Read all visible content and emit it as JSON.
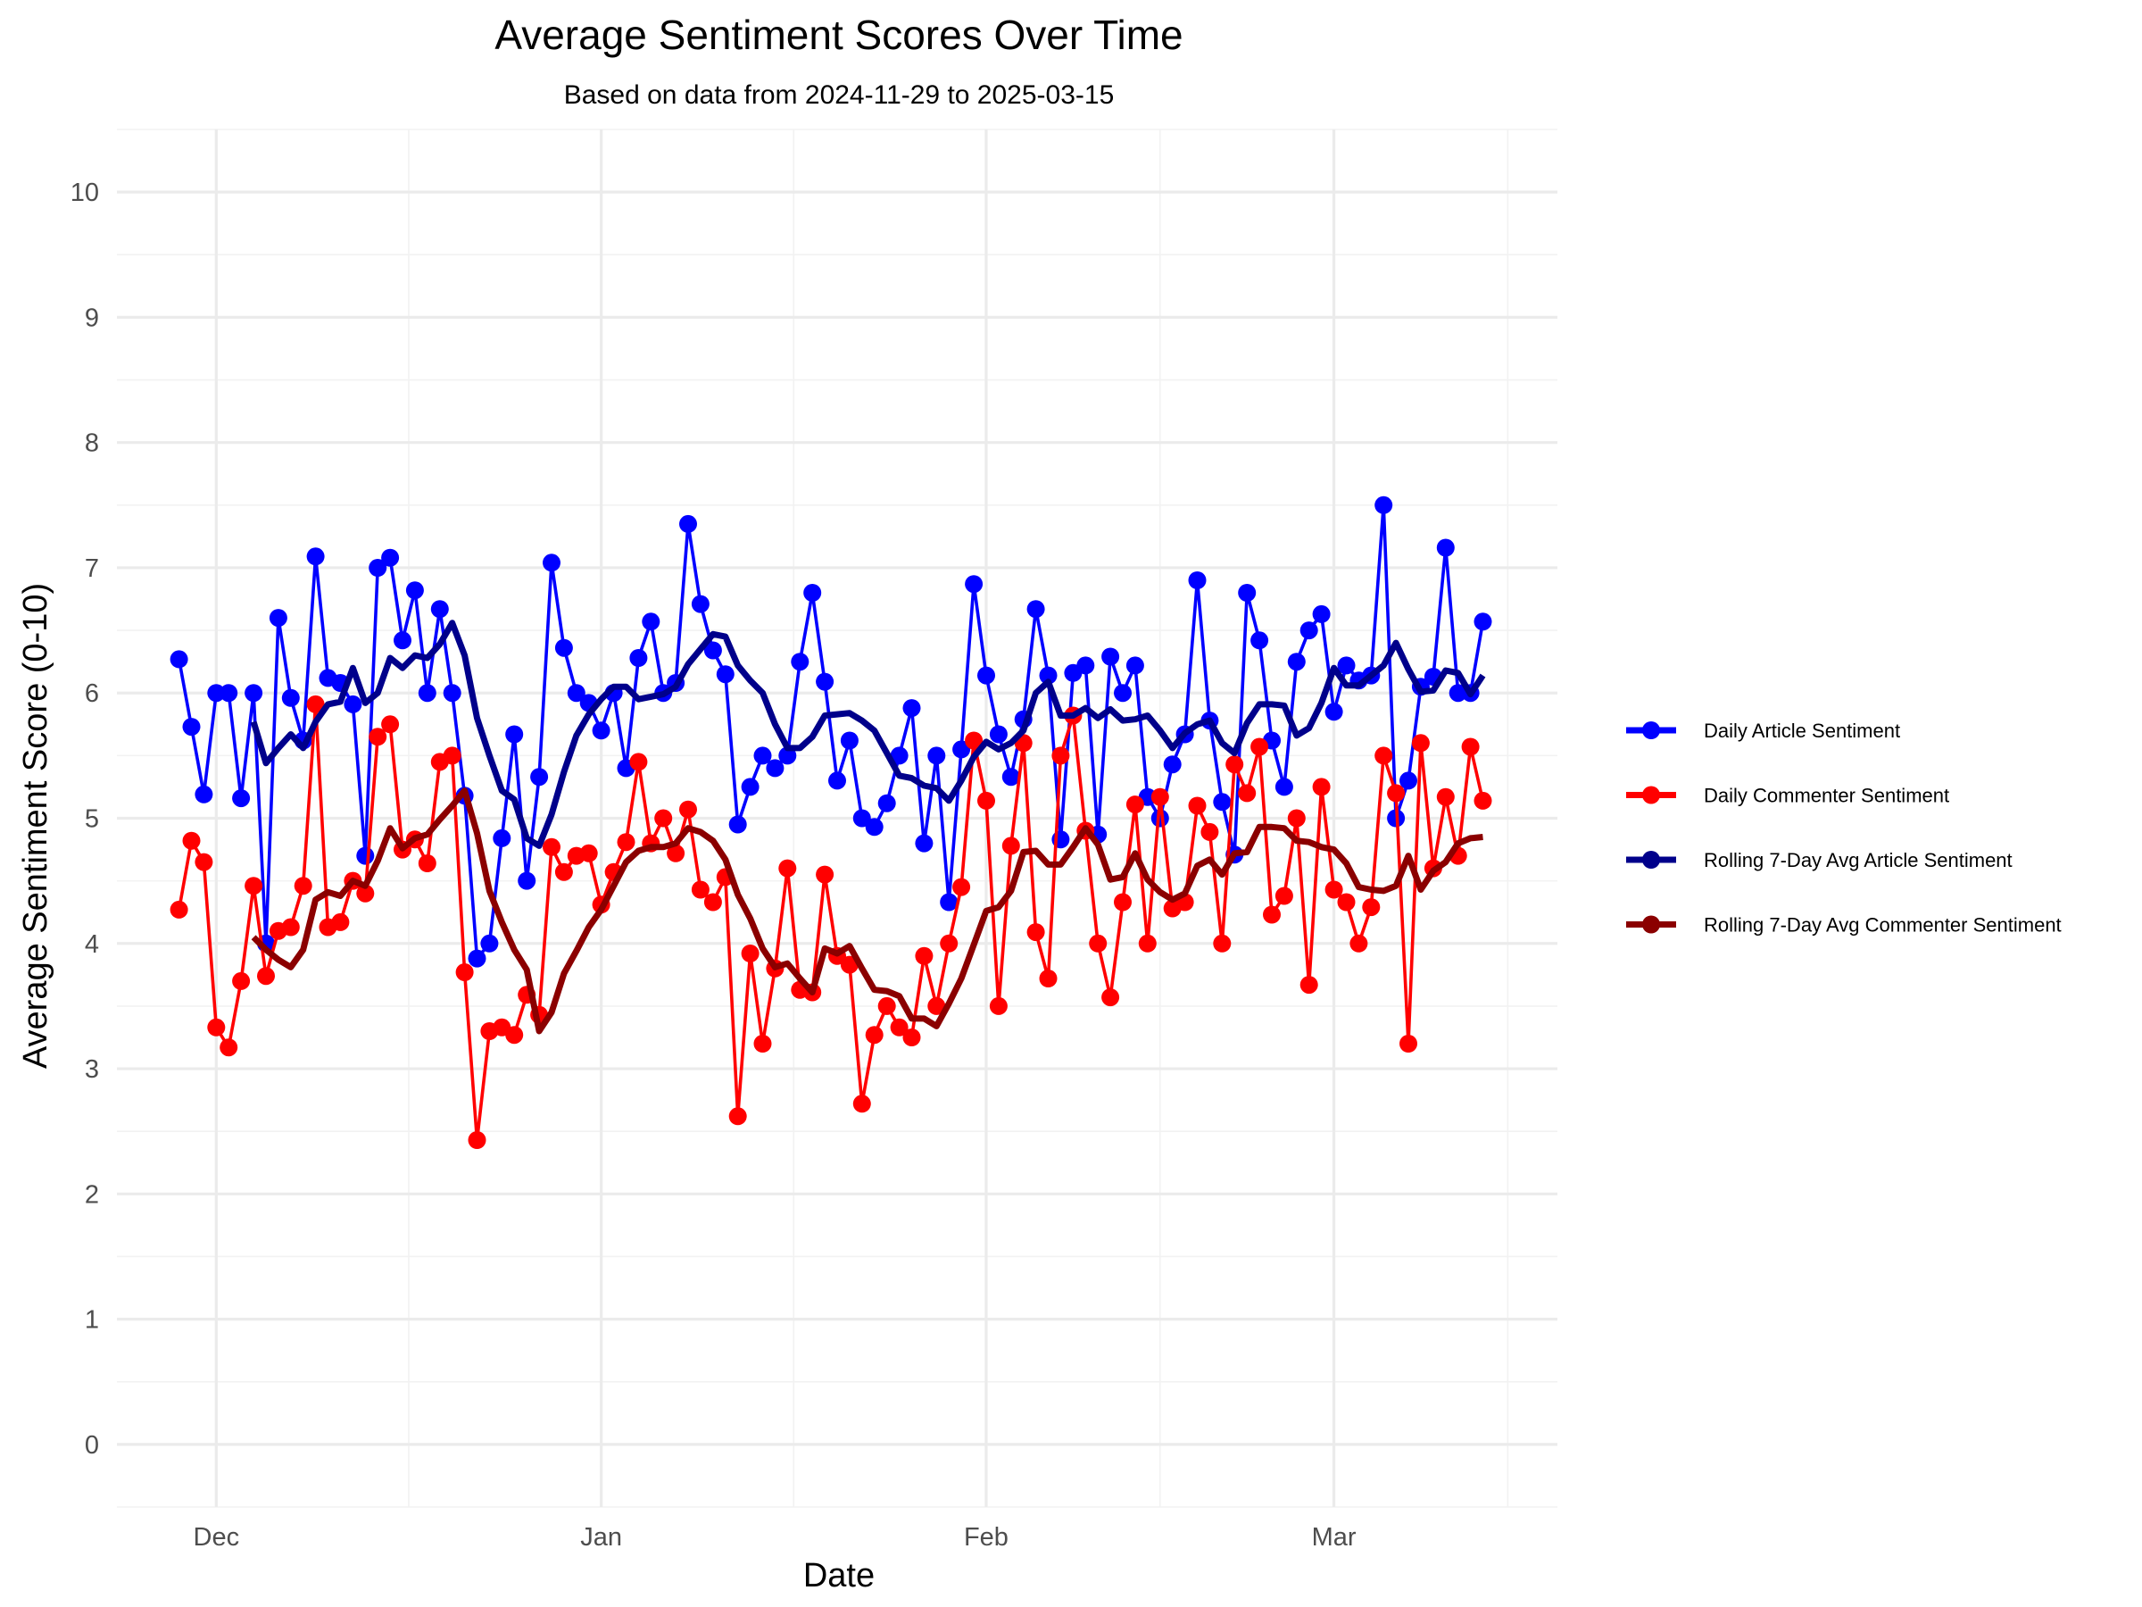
{
  "chart_data": {
    "type": "line",
    "title": "Average Sentiment Scores Over Time",
    "subtitle": "Based on data from 2024-11-29 to 2025-03-15",
    "xlabel": "Date",
    "ylabel": "Average Sentiment Score (0-10)",
    "x_start": "2024-11-28",
    "x_tick_labels": [
      {
        "label": "Dec",
        "date": "2024-12-01"
      },
      {
        "label": "Jan",
        "date": "2025-01-01"
      },
      {
        "label": "Feb",
        "date": "2025-02-01"
      },
      {
        "label": "Mar",
        "date": "2025-03-01"
      }
    ],
    "xlim": [
      "2024-11-23",
      "2025-03-19"
    ],
    "ylim": [
      -0.5,
      10.5
    ],
    "y_ticks": [
      "0",
      "1",
      "2",
      "3",
      "4",
      "5",
      "6",
      "7",
      "8",
      "9",
      "10"
    ],
    "grid": true,
    "legend_position": "right",
    "series": [
      {
        "name": "Daily Article Sentiment",
        "color": "#0000FF",
        "markers": true,
        "values": [
          6.27,
          5.73,
          5.19,
          6.0,
          6.0,
          5.16,
          6.0,
          4.0,
          6.6,
          5.96,
          5.62,
          7.09,
          6.12,
          6.08,
          5.91,
          4.7,
          7.0,
          7.08,
          6.42,
          6.82,
          6.0,
          6.67,
          6.0,
          5.18,
          3.88,
          4.0,
          4.84,
          5.67,
          4.5,
          5.33,
          7.04,
          6.36,
          6.0,
          5.92,
          5.7,
          6.0,
          5.4,
          6.28,
          6.57,
          6.0,
          6.08,
          7.35,
          6.71,
          6.34,
          6.15,
          4.95,
          5.25,
          5.5,
          5.4,
          5.5,
          6.25,
          6.8,
          6.09,
          5.3,
          5.62,
          5.0,
          4.93,
          5.12,
          5.5,
          5.88,
          4.8,
          5.5,
          4.33,
          5.55,
          6.87,
          6.14,
          5.67,
          5.33,
          5.79,
          6.67,
          6.14,
          4.83,
          6.16,
          6.22,
          4.87,
          6.29,
          6.0,
          6.22,
          5.17,
          5.0,
          5.43,
          5.67,
          6.9,
          5.78,
          5.13,
          4.71,
          6.8,
          6.42,
          5.62,
          5.25,
          6.25,
          6.5,
          6.63,
          5.85,
          6.22,
          6.1,
          6.14,
          7.5,
          5.0,
          5.3,
          6.05,
          6.13,
          7.16,
          6.0,
          6.0,
          6.57
        ]
      },
      {
        "name": "Daily Commenter Sentiment",
        "color": "#FF0000",
        "markers": true,
        "values": [
          4.27,
          4.82,
          4.65,
          3.33,
          3.17,
          3.7,
          4.46,
          3.74,
          4.1,
          4.13,
          4.46,
          5.91,
          4.13,
          4.17,
          4.5,
          4.4,
          5.65,
          5.75,
          4.75,
          4.83,
          4.64,
          5.45,
          5.5,
          3.77,
          2.43,
          3.3,
          3.33,
          3.27,
          3.59,
          3.43,
          4.77,
          4.57,
          4.7,
          4.72,
          4.31,
          4.57,
          4.81,
          5.45,
          4.8,
          5.0,
          4.72,
          5.07,
          4.43,
          4.33,
          4.53,
          2.62,
          3.92,
          3.2,
          3.8,
          4.6,
          3.63,
          3.61,
          4.55,
          3.9,
          3.83,
          2.72,
          3.27,
          3.5,
          3.33,
          3.25,
          3.9,
          3.5,
          4.0,
          4.45,
          5.62,
          5.14,
          3.5,
          4.78,
          5.6,
          4.09,
          3.72,
          5.5,
          5.82,
          4.9,
          4.0,
          3.57,
          4.33,
          5.11,
          4.0,
          5.17,
          4.28,
          4.33,
          5.1,
          4.89,
          4.0,
          5.43,
          5.2,
          5.57,
          4.23,
          4.38,
          5.0,
          3.67,
          5.25,
          4.43,
          4.33,
          4.0,
          4.29,
          5.5,
          5.2,
          3.2,
          5.6,
          4.6,
          5.17,
          4.7,
          5.57,
          5.14
        ]
      },
      {
        "name": "Rolling 7-Day Avg Article Sentiment",
        "color": "#00008B",
        "markers": false,
        "values": [
          null,
          null,
          null,
          null,
          null,
          null,
          5.77,
          5.44,
          5.56,
          5.67,
          5.56,
          5.77,
          5.91,
          5.93,
          6.2,
          5.92,
          6.0,
          6.28,
          6.2,
          6.3,
          6.28,
          6.39,
          6.56,
          6.3,
          5.8,
          5.5,
          5.22,
          5.15,
          4.84,
          4.78,
          5.03,
          5.37,
          5.66,
          5.83,
          5.95,
          6.05,
          6.05,
          5.95,
          5.97,
          5.99,
          6.05,
          6.23,
          6.35,
          6.47,
          6.45,
          6.22,
          6.1,
          6.0,
          5.75,
          5.56,
          5.56,
          5.65,
          5.82,
          5.83,
          5.84,
          5.78,
          5.7,
          5.52,
          5.34,
          5.32,
          5.26,
          5.24,
          5.14,
          5.3,
          5.49,
          5.61,
          5.55,
          5.6,
          5.7,
          6.0,
          6.09,
          5.82,
          5.82,
          5.88,
          5.8,
          5.87,
          5.78,
          5.79,
          5.82,
          5.7,
          5.56,
          5.68,
          5.75,
          5.78,
          5.6,
          5.52,
          5.76,
          5.91,
          5.91,
          5.9,
          5.66,
          5.72,
          5.92,
          6.2,
          6.06,
          6.06,
          6.14,
          6.22,
          6.4,
          6.19,
          6.01,
          6.02,
          6.18,
          6.16,
          5.99,
          6.14
        ]
      },
      {
        "name": "Rolling 7-Day Avg Commenter Sentiment",
        "color": "#8B0000",
        "markers": false,
        "values": [
          null,
          null,
          null,
          null,
          null,
          null,
          4.05,
          3.95,
          3.87,
          3.81,
          3.95,
          4.35,
          4.41,
          4.38,
          4.5,
          4.46,
          4.66,
          4.92,
          4.76,
          4.84,
          4.87,
          4.99,
          5.1,
          5.22,
          4.88,
          4.42,
          4.17,
          3.95,
          3.79,
          3.3,
          3.45,
          3.76,
          3.94,
          4.13,
          4.27,
          4.46,
          4.65,
          4.74,
          4.77,
          4.77,
          4.8,
          4.92,
          4.89,
          4.82,
          4.67,
          4.39,
          4.2,
          3.96,
          3.81,
          3.84,
          3.72,
          3.61,
          3.96,
          3.92,
          3.98,
          3.8,
          3.63,
          3.62,
          3.58,
          3.4,
          3.4,
          3.34,
          3.52,
          3.72,
          3.99,
          4.26,
          4.29,
          4.42,
          4.73,
          4.74,
          4.63,
          4.63,
          4.77,
          4.92,
          4.79,
          4.51,
          4.53,
          4.72,
          4.51,
          4.41,
          4.35,
          4.4,
          4.62,
          4.67,
          4.55,
          4.72,
          4.73,
          4.93,
          4.93,
          4.92,
          4.82,
          4.81,
          4.77,
          4.75,
          4.64,
          4.45,
          4.43,
          4.42,
          4.46,
          4.7,
          4.43,
          4.58,
          4.65,
          4.8,
          4.84,
          4.85
        ]
      }
    ]
  }
}
